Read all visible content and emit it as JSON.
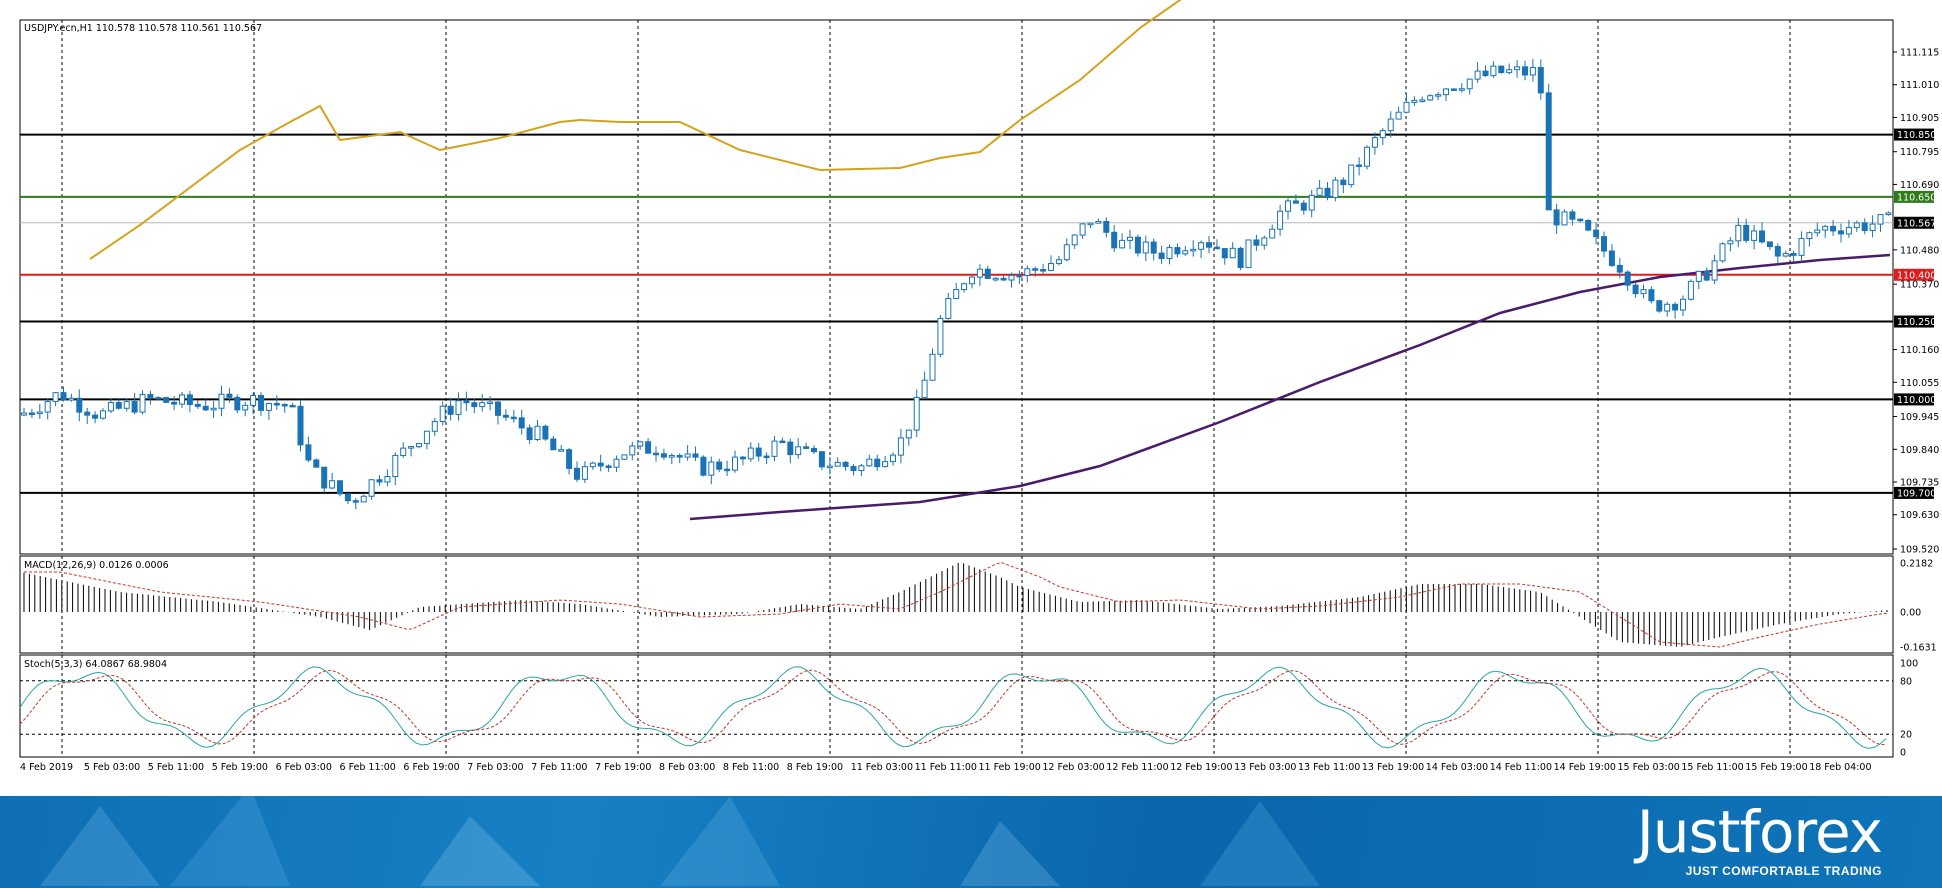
{
  "main_chart": {
    "header": "USDJPY.ecn,H1  110.578 110.578 110.561 110.567",
    "price_ticks": [
      "111.115",
      "111.010",
      "110.905",
      "110.795",
      "110.690",
      "110.480",
      "110.370",
      "110.160",
      "110.055",
      "109.945",
      "109.840",
      "109.735",
      "109.630",
      "109.520"
    ],
    "current_price": "110.567",
    "levels": [
      {
        "label": "110.850",
        "color": "#000000"
      },
      {
        "label": "110.650",
        "color": "#2e7d1a"
      },
      {
        "label": "110.400",
        "color": "#e01b1b"
      },
      {
        "label": "110.250",
        "color": "#000000"
      },
      {
        "label": "110.000",
        "color": "#000000"
      },
      {
        "label": "109.700",
        "color": "#000000"
      }
    ],
    "candle_color": "#1a73b5",
    "ma_fast_color": "#d4a31c",
    "ma_slow_color": "#4a1a6b"
  },
  "macd": {
    "header": "MACD(12,26,9) 0.0126 0.0006",
    "ticks": [
      "0.2182",
      "0.00",
      "-0.1631"
    ]
  },
  "stoch": {
    "header": "Stoch(5,3,3) 64.0867 68.9804",
    "ticks": [
      "100",
      "80",
      "20",
      "0"
    ]
  },
  "time_axis": [
    "4 Feb 2019",
    "5 Feb 03:00",
    "5 Feb 11:00",
    "5 Feb 19:00",
    "6 Feb 03:00",
    "6 Feb 11:00",
    "6 Feb 19:00",
    "7 Feb 03:00",
    "7 Feb 11:00",
    "7 Feb 19:00",
    "8 Feb 03:00",
    "8 Feb 11:00",
    "8 Feb 19:00",
    "11 Feb 03:00",
    "11 Feb 11:00",
    "11 Feb 19:00",
    "12 Feb 03:00",
    "12 Feb 11:00",
    "12 Feb 19:00",
    "13 Feb 03:00",
    "13 Feb 11:00",
    "13 Feb 19:00",
    "14 Feb 03:00",
    "14 Feb 11:00",
    "14 Feb 19:00",
    "15 Feb 03:00",
    "15 Feb 11:00",
    "15 Feb 19:00",
    "18 Feb 04:00"
  ],
  "brand": {
    "name": "Justforex",
    "tagline": "JUST COMFORTABLE TRADING"
  }
}
